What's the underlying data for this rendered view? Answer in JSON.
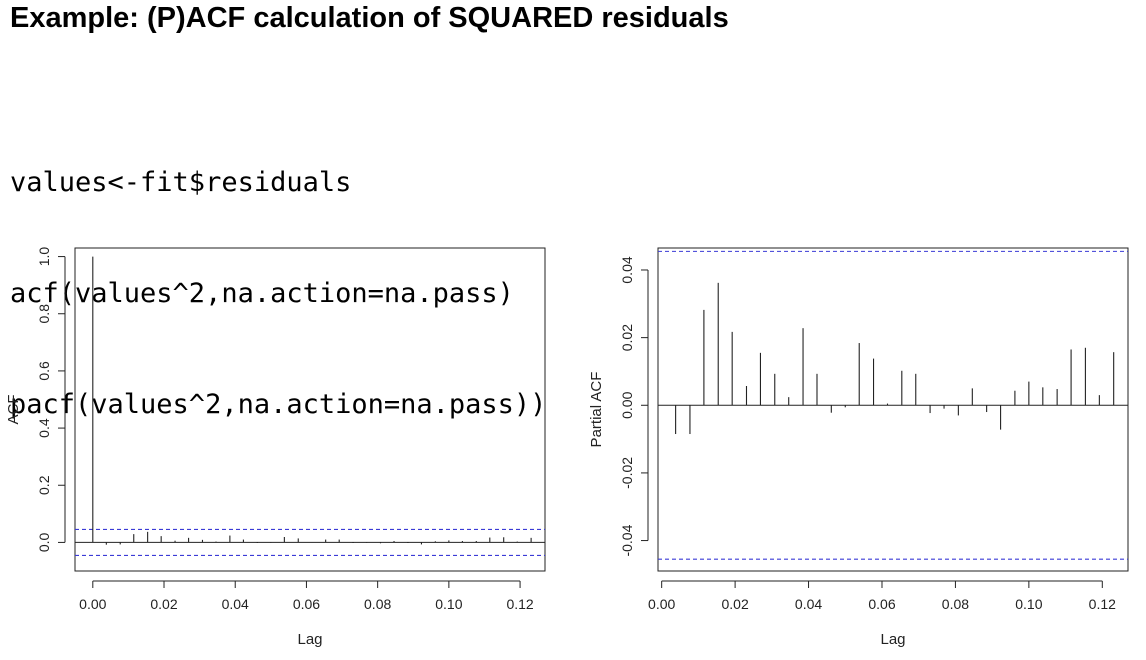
{
  "header": {
    "title": "Example: (P)ACF calculation of SQUARED residuals"
  },
  "code": {
    "lines": [
      "values<-fit$residuals",
      "acf(values^2,na.action=na.pass)",
      "pacf(values^2,na.action=na.pass))"
    ]
  },
  "chart_data": [
    {
      "type": "bar",
      "xlabel": "Lag",
      "ylabel": "ACF",
      "xlim": [
        -0.005,
        0.127
      ],
      "ylim": [
        -0.1,
        1.03
      ],
      "xticks": [
        "0.00",
        "0.02",
        "0.04",
        "0.06",
        "0.08",
        "0.10",
        "0.12"
      ],
      "yticks": [
        "0.0",
        "0.2",
        "0.4",
        "0.6",
        "0.8",
        "1.0"
      ],
      "confidence_bounds": [
        0.0455,
        -0.0455
      ],
      "bounds_color": "#3b3bd6",
      "x": [
        0.0,
        0.0038,
        0.0077,
        0.0115,
        0.0154,
        0.0192,
        0.0231,
        0.0269,
        0.0308,
        0.0346,
        0.0385,
        0.0423,
        0.0462,
        0.05,
        0.0538,
        0.0577,
        0.0615,
        0.0654,
        0.0692,
        0.0731,
        0.0769,
        0.0808,
        0.0846,
        0.0885,
        0.0923,
        0.0962,
        0.1,
        0.1038,
        0.1077,
        0.1115,
        0.1154,
        0.1192,
        0.1231
      ],
      "values": [
        1.0,
        -0.008,
        -0.007,
        0.029,
        0.037,
        0.022,
        0.006,
        0.016,
        0.009,
        0.003,
        0.024,
        0.01,
        -0.002,
        -0.001,
        0.019,
        0.014,
        0.001,
        0.01,
        0.01,
        -0.002,
        -0.001,
        -0.003,
        0.005,
        -0.002,
        -0.007,
        0.004,
        0.007,
        0.005,
        0.005,
        0.017,
        0.018,
        0.003,
        0.016
      ]
    },
    {
      "type": "bar",
      "xlabel": "Lag",
      "ylabel": "Partial ACF",
      "xlim": [
        -0.001,
        0.127
      ],
      "ylim": [
        -0.049,
        0.0465
      ],
      "xticks": [
        "0.00",
        "0.02",
        "0.04",
        "0.06",
        "0.08",
        "0.10",
        "0.12"
      ],
      "yticks": [
        "-0.04",
        "-0.02",
        "0.00",
        "0.02",
        "0.04"
      ],
      "confidence_bounds": [
        0.0455,
        -0.0455
      ],
      "bounds_color": "#3b3bd6",
      "x": [
        0.0038,
        0.0077,
        0.0115,
        0.0154,
        0.0192,
        0.0231,
        0.0269,
        0.0308,
        0.0346,
        0.0385,
        0.0423,
        0.0462,
        0.05,
        0.0538,
        0.0577,
        0.0615,
        0.0654,
        0.0692,
        0.0731,
        0.0769,
        0.0808,
        0.0846,
        0.0885,
        0.0923,
        0.0962,
        0.1,
        0.1038,
        0.1077,
        0.1115,
        0.1154,
        0.1192,
        0.1231
      ],
      "values": [
        -0.0085,
        -0.0085,
        0.0282,
        0.0362,
        0.0217,
        0.0057,
        0.0155,
        0.0093,
        0.0024,
        0.0228,
        0.0093,
        -0.0022,
        -0.0006,
        0.0184,
        0.0138,
        0.0005,
        0.0102,
        0.0093,
        -0.0023,
        -0.001,
        -0.003,
        0.005,
        -0.002,
        -0.0072,
        0.0043,
        0.007,
        0.0053,
        0.0048,
        0.0165,
        0.017,
        0.003,
        0.0157
      ]
    }
  ]
}
